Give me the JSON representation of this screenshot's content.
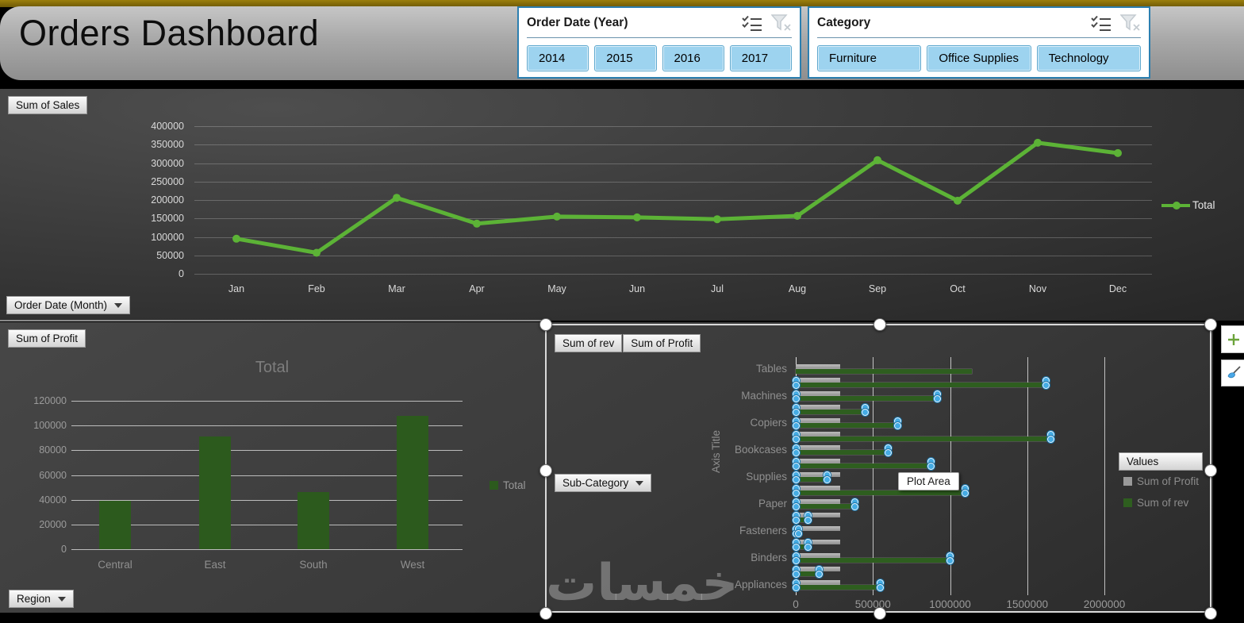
{
  "header": {
    "title": "Orders Dashboard",
    "slicers": [
      {
        "title": "Order Date (Year)",
        "items": [
          "2014",
          "2015",
          "2016",
          "2017"
        ]
      },
      {
        "title": "Category",
        "items": [
          "Furniture",
          "Office Supplies",
          "Technology"
        ]
      }
    ]
  },
  "field_buttons": {
    "sum_of_sales": "Sum of Sales",
    "order_date_month": "Order Date (Month)",
    "sum_of_profit_left": "Sum of Profit",
    "region": "Region",
    "sum_of_rev": "Sum of rev",
    "sum_of_profit_right": "Sum of Profit",
    "sub_category": "Sub-Category",
    "values": "Values"
  },
  "tooltip": {
    "text": "Plot Area"
  },
  "watermark": {
    "text": "خمسات"
  },
  "colors": {
    "accent_line_green": "#5CB336",
    "dark_bar_green": "#2C5A1D",
    "sub_rev_green": "#2E5E1F",
    "sub_profit_gray": "#9A9A9A",
    "marker_blue": "#45ACE4",
    "slicer_fill_blue": "#9DD3EF",
    "slicer_border_blue": "#2C7FB0",
    "gold_strip": "#82690A"
  },
  "chart_data": [
    {
      "id": "sales_by_month",
      "type": "line",
      "title": "",
      "categories": [
        "Jan",
        "Feb",
        "Mar",
        "Apr",
        "May",
        "Jun",
        "Jul",
        "Aug",
        "Sep",
        "Oct",
        "Nov",
        "Dec"
      ],
      "series": [
        {
          "name": "Total",
          "color": "#5CB336",
          "values": [
            95000,
            57000,
            206000,
            136000,
            155000,
            153000,
            148000,
            157000,
            308000,
            198000,
            355000,
            327000
          ]
        }
      ],
      "ylim": [
        0,
        400000
      ],
      "yticks": [
        0,
        50000,
        100000,
        150000,
        200000,
        250000,
        300000,
        350000,
        400000
      ],
      "grid": true,
      "legend_position": "right"
    },
    {
      "id": "profit_by_region",
      "type": "bar",
      "title": "Total",
      "categories": [
        "Central",
        "East",
        "South",
        "West"
      ],
      "series": [
        {
          "name": "Total",
          "color": "#2C5A1D",
          "values": [
            39000,
            91000,
            46000,
            108000
          ]
        }
      ],
      "ylim": [
        0,
        120000
      ],
      "yticks": [
        0,
        20000,
        40000,
        60000,
        80000,
        100000,
        120000
      ],
      "grid": true,
      "legend_position": "right"
    },
    {
      "id": "subcategory_rev_profit",
      "type": "bar",
      "orientation": "horizontal",
      "title": "",
      "axis_title": "Axis Title",
      "xlim": [
        0,
        2500000
      ],
      "xticks": [
        0,
        500000,
        1000000,
        1500000,
        2000000
      ],
      "series_legend": [
        {
          "name": "Sum of Profit",
          "color": "#9A9A9A"
        },
        {
          "name": "Sum of rev",
          "color": "#2E5E1F"
        }
      ],
      "rows": [
        {
          "category": "Tables",
          "profit": 290000,
          "rev": 1140000,
          "selected": false
        },
        {
          "category": "",
          "profit": 290000,
          "rev": 1620000,
          "selected": true
        },
        {
          "category": "Machines",
          "profit": 290000,
          "rev": 920000,
          "selected": true
        },
        {
          "category": "",
          "profit": 290000,
          "rev": 450000,
          "selected": true
        },
        {
          "category": "Copiers",
          "profit": 290000,
          "rev": 660000,
          "selected": true
        },
        {
          "category": "",
          "profit": 290000,
          "rev": 1655000,
          "selected": true
        },
        {
          "category": "Bookcases",
          "profit": 290000,
          "rev": 600000,
          "selected": true
        },
        {
          "category": "",
          "profit": 290000,
          "rev": 875000,
          "selected": true
        },
        {
          "category": "Supplies",
          "profit": 290000,
          "rev": 205000,
          "selected": true
        },
        {
          "category": "",
          "profit": 290000,
          "rev": 1100000,
          "selected": true
        },
        {
          "category": "Paper",
          "profit": 290000,
          "rev": 385000,
          "selected": true
        },
        {
          "category": "",
          "profit": 290000,
          "rev": 80000,
          "selected": true
        },
        {
          "category": "Fasteners",
          "profit": 290000,
          "rev": 20000,
          "selected": true
        },
        {
          "category": "",
          "profit": 290000,
          "rev": 80000,
          "selected": true
        },
        {
          "category": "Binders",
          "profit": 290000,
          "rev": 1000000,
          "selected": true
        },
        {
          "category": "",
          "profit": 290000,
          "rev": 150000,
          "selected": true
        },
        {
          "category": "Appliances",
          "profit": 290000,
          "rev": 550000,
          "selected": true
        }
      ]
    }
  ]
}
